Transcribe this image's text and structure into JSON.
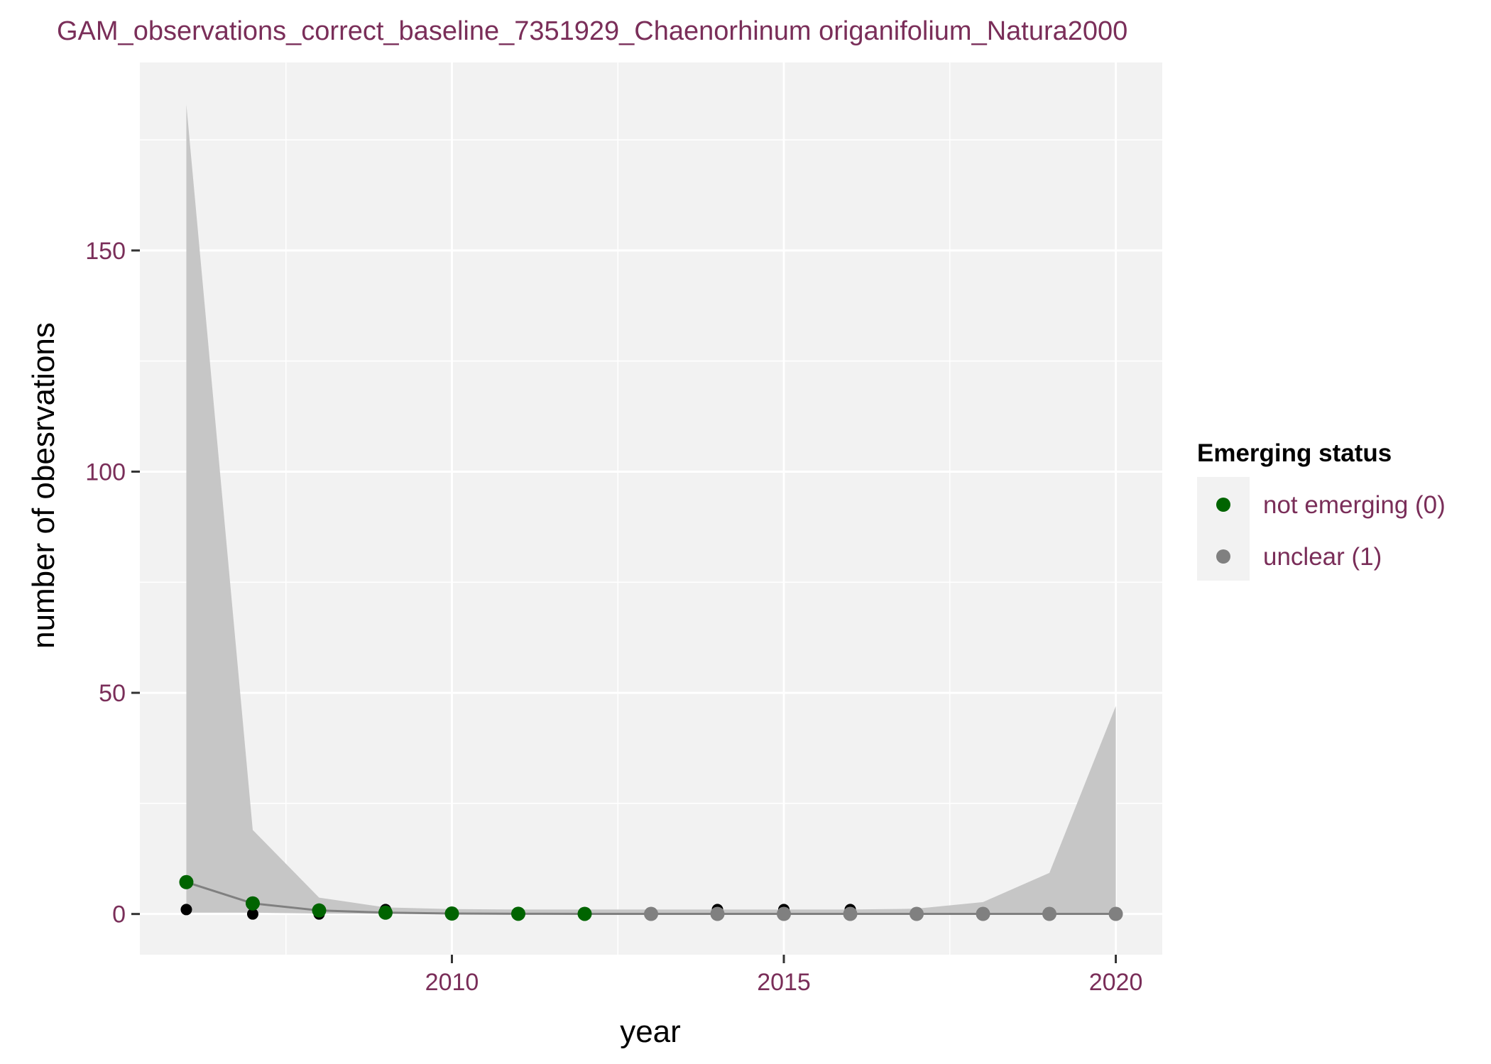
{
  "chart_data": {
    "type": "line",
    "title": "GAM_observations_correct_baseline_7351929_Chaenorhinum origanifolium_Natura2000",
    "xlabel": "year",
    "ylabel": "number of obesrvations",
    "xlim": [
      2005.3,
      2020.7
    ],
    "ylim": [
      -9.2,
      192.5
    ],
    "x_ticks": [
      2010,
      2015,
      2020
    ],
    "x_tick_labels": [
      "2010",
      "2015",
      "2020"
    ],
    "y_ticks": [
      0,
      50,
      100,
      150
    ],
    "y_tick_labels": [
      "0",
      "50",
      "100",
      "150"
    ],
    "grid": true,
    "legend_position": "right",
    "colors": {
      "panel": "#f2f2f2",
      "grid": "#ffffff",
      "ribbon": "#c6c6c6",
      "fit_line": "#808080",
      "observed_points": "#000000",
      "text_accent": "#7a2e59",
      "not_emerging": "#006400",
      "unclear": "#808080"
    },
    "legend": {
      "title": "Emerging status",
      "items": [
        {
          "label": "not emerging (0)",
          "color": "#006400"
        },
        {
          "label": "unclear (1)",
          "color": "#808080"
        }
      ]
    },
    "observed": {
      "x": [
        2006,
        2007,
        2008,
        2009,
        2014,
        2015,
        2016
      ],
      "y": [
        1,
        0,
        0,
        1,
        1,
        1,
        1
      ]
    },
    "fit": {
      "x": [
        2006,
        2007,
        2008,
        2009,
        2010,
        2011,
        2012,
        2013,
        2014,
        2015,
        2016,
        2017,
        2018,
        2019,
        2020
      ],
      "y": [
        7.2,
        2.4,
        0.8,
        0.3,
        0.1,
        0.05,
        0.03,
        0.02,
        0.02,
        0.02,
        0.02,
        0.02,
        0.02,
        0.02,
        0.02
      ],
      "lower": [
        0.3,
        0.3,
        0.1,
        0.05,
        0.02,
        0.01,
        0.01,
        0.01,
        0.01,
        0.01,
        0.01,
        0.01,
        0.01,
        0.01,
        0.01
      ],
      "upper": [
        183,
        19,
        3.7,
        1.5,
        1.1,
        1.0,
        1.0,
        1.0,
        1.0,
        1.0,
        1.0,
        1.2,
        2.7,
        9.3,
        47
      ],
      "status": [
        0,
        0,
        0,
        0,
        0,
        0,
        0,
        1,
        1,
        1,
        1,
        1,
        1,
        1,
        1
      ]
    }
  }
}
